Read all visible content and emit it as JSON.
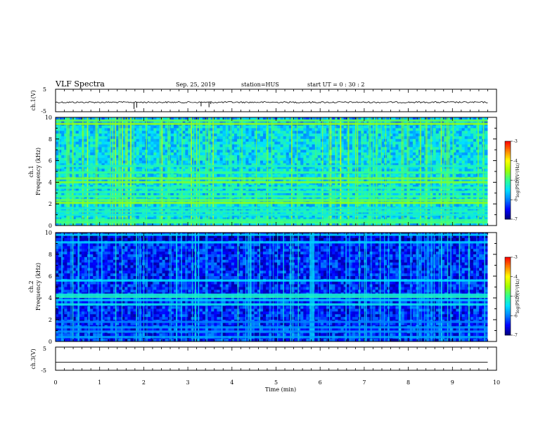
{
  "header": {
    "title": "VLF Spectra",
    "date": "Sep. 25, 2019",
    "station": "station=HUS",
    "start": "start  UT =   0 : 30 : 2"
  },
  "colors": {
    "spectro_scale": [
      "#00007a",
      "#0000ff",
      "#0080ff",
      "#00e0ff",
      "#30ff90",
      "#a0ff00",
      "#ffff00",
      "#ff8000",
      "#ff0000",
      "#ffffff"
    ]
  },
  "chart_data": [
    {
      "type": "line",
      "panel": "ch1-waveform",
      "ylabel": "ch.1(V)",
      "y_ticks": [
        "5",
        "-5"
      ],
      "ylim": [
        -5,
        5
      ],
      "xlim": [
        0,
        10
      ],
      "baseline": -0.8,
      "spikes": [
        {
          "x": 1.78,
          "y": -3.8
        },
        {
          "x": 1.84,
          "y": -3.2
        },
        {
          "x": 3.3,
          "y": -2.6
        },
        {
          "x": 3.48,
          "y": -3.0
        },
        {
          "x": 3.52,
          "y": -1.6
        }
      ],
      "data_end_x": 9.8
    },
    {
      "type": "heatmap",
      "panel": "ch1-spectrogram",
      "ylabel": "ch.1\nFrequency (kHz)",
      "y_ticks": [
        "0",
        "2",
        "4",
        "6",
        "8",
        "10"
      ],
      "ylim": [
        0,
        10
      ],
      "xlim": [
        0,
        10
      ],
      "data_end_x": 9.8,
      "background_log_psd": -5.5,
      "bands_khz": [
        {
          "f": 0.3,
          "v": -4.9
        },
        {
          "f": 0.5,
          "v": -5.0
        },
        {
          "f": 1.0,
          "v": -5.3
        },
        {
          "f": 1.3,
          "v": -5.2
        },
        {
          "f": 1.6,
          "v": -5.3
        },
        {
          "f": 2.1,
          "v": -4.6
        },
        {
          "f": 2.35,
          "v": -4.8
        },
        {
          "f": 2.7,
          "v": -5.0
        },
        {
          "f": 3.1,
          "v": -5.1
        },
        {
          "f": 3.5,
          "v": -5.1
        },
        {
          "f": 4.0,
          "v": -4.7
        },
        {
          "f": 4.35,
          "v": -4.7
        },
        {
          "f": 4.9,
          "v": -5.0
        },
        {
          "f": 5.5,
          "v": -5.2
        },
        {
          "f": 9.4,
          "v": -4.6
        },
        {
          "f": 9.7,
          "v": -4.8
        }
      ],
      "colorbar": {
        "label": "log(PSD)(V²/Hz)",
        "ticks": [
          "-3",
          "-4",
          "-5",
          "-6",
          "-7"
        ],
        "range": [
          -7,
          -3
        ]
      }
    },
    {
      "type": "heatmap",
      "panel": "ch2-spectrogram",
      "ylabel": "ch.2\nFrequency (kHz)",
      "y_ticks": [
        "0",
        "2",
        "4",
        "6",
        "8",
        "10"
      ],
      "ylim": [
        0,
        10
      ],
      "xlim": [
        0,
        10
      ],
      "data_end_x": 9.8,
      "background_log_psd": -6.4,
      "bands_khz": [
        {
          "f": 0.4,
          "v": -5.8
        },
        {
          "f": 0.9,
          "v": -5.9
        },
        {
          "f": 1.3,
          "v": -5.9
        },
        {
          "f": 1.8,
          "v": -6.0
        },
        {
          "f": 3.4,
          "v": -5.4
        },
        {
          "f": 3.8,
          "v": -5.6
        },
        {
          "f": 4.1,
          "v": -5.2
        },
        {
          "f": 4.3,
          "v": -5.3
        },
        {
          "f": 5.6,
          "v": -5.5
        },
        {
          "f": 9.1,
          "v": -5.6
        },
        {
          "f": 9.8,
          "v": -5.6
        }
      ],
      "colorbar": {
        "label": "log(PSD)(V²/Hz)",
        "ticks": [
          "-3",
          "-4",
          "-5",
          "-6",
          "-7"
        ],
        "range": [
          -7,
          -3
        ]
      }
    },
    {
      "type": "line",
      "panel": "ch3-waveform",
      "ylabel": "ch.3(V)",
      "y_ticks": [
        "5",
        "-5"
      ],
      "ylim": [
        -5,
        5
      ],
      "xlim": [
        0,
        10
      ],
      "baseline": -1.5,
      "data_end_x": 9.8
    }
  ],
  "xaxis": {
    "label": "Time  (min)",
    "ticks": [
      "0",
      "1",
      "2",
      "3",
      "4",
      "5",
      "6",
      "7",
      "8",
      "9",
      "10"
    ],
    "range": [
      0,
      10
    ]
  }
}
